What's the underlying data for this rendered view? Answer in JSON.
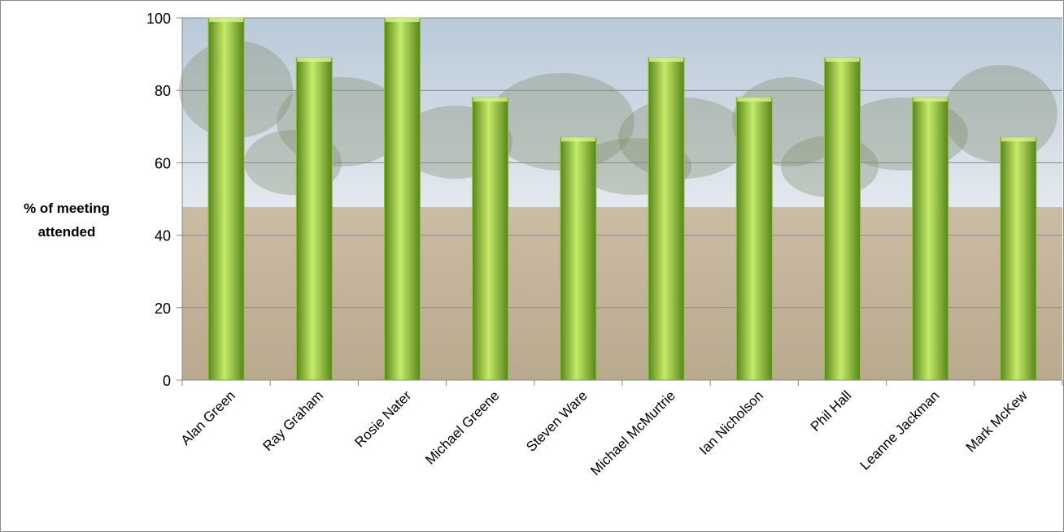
{
  "chart_data": {
    "type": "bar",
    "title": "",
    "xlabel": "",
    "ylabel": [
      "% of meeting",
      "attended"
    ],
    "categories": [
      "Alan Green",
      "Ray Graham",
      "Rosie Nater",
      "Michael Greene",
      "Steven Ware",
      "Michael McMurtrie",
      "Ian Nicholson",
      "Phil Hall",
      "Leanne Jackman",
      "Mark McKew"
    ],
    "values": [
      100,
      89,
      100,
      78,
      67,
      89,
      78,
      89,
      78,
      67
    ],
    "ylim": [
      0,
      100
    ],
    "yticks": [
      0,
      20,
      40,
      60,
      80,
      100
    ],
    "grid": true,
    "legend": "none",
    "colors": {
      "bar_light": "#c6eb6a",
      "bar_mid": "#8fc531",
      "bar_dark": "#56851a",
      "bar_top": "#d8f58a",
      "sky": "#b9c9d8",
      "sky_light": "#e4e9ef",
      "ground": "#cbbca4",
      "ground_dark": "#b9a98f",
      "trees": "#7e8a6a",
      "gridline": "#8a8a8a",
      "axis": "#8a8a8a"
    }
  }
}
